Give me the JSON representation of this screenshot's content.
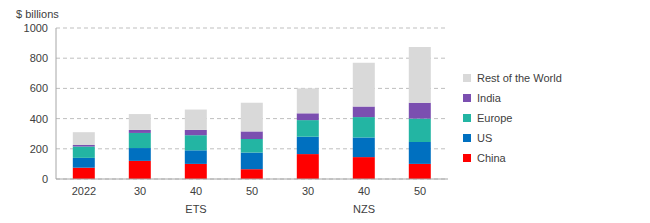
{
  "chart_data": {
    "type": "bar",
    "y_label": "$ billions",
    "categories": [
      "2022",
      "30",
      "40",
      "50",
      "30",
      "40",
      "50"
    ],
    "groups": [
      null,
      "ETS",
      "ETS",
      "ETS",
      "NZS",
      "NZS",
      "NZS"
    ],
    "series": [
      {
        "name": "China",
        "color": "#ff0000",
        "values": [
          75,
          120,
          100,
          65,
          165,
          145,
          100
        ]
      },
      {
        "name": "US",
        "color": "#0070c0",
        "values": [
          65,
          85,
          90,
          110,
          115,
          130,
          145
        ]
      },
      {
        "name": "Europe",
        "color": "#23b5a3",
        "values": [
          75,
          100,
          100,
          90,
          110,
          135,
          155
        ]
      },
      {
        "name": "India",
        "color": "#7b4fb0",
        "values": [
          10,
          20,
          35,
          50,
          45,
          70,
          105
        ]
      },
      {
        "name": "Rest of the World",
        "color": "#d9d9d9",
        "values": [
          85,
          105,
          135,
          190,
          165,
          290,
          370
        ]
      }
    ],
    "ylim": [
      0,
      1000
    ],
    "yticks": [
      0,
      200,
      400,
      600,
      800,
      1000
    ],
    "grid": true,
    "stacked": true,
    "legend": "right"
  }
}
